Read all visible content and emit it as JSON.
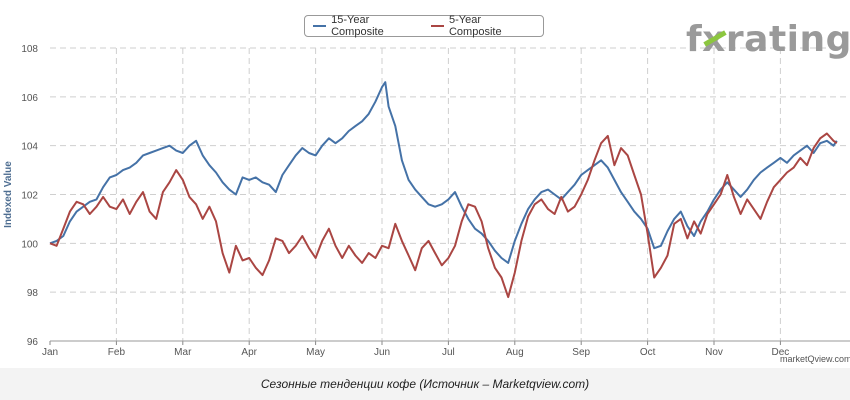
{
  "logo": {
    "pre": "f",
    "x": "x",
    "post": "rating"
  },
  "credit": "marketQview.com",
  "caption": "Сезонные тенденции кофе (Источник – Marketqview.com)",
  "chart_data": {
    "type": "line",
    "title": "",
    "xlabel": "",
    "ylabel": "Indexed Value",
    "ylim": [
      96,
      108
    ],
    "yticks": [
      96,
      98,
      100,
      102,
      104,
      106,
      108
    ],
    "months": [
      "Jan",
      "Feb",
      "Mar",
      "Apr",
      "May",
      "Jun",
      "Jul",
      "Aug",
      "Sep",
      "Oct",
      "Nov",
      "Dec"
    ],
    "grid": true,
    "legend_position": "top-center",
    "series": [
      {
        "name": "15-Year Composite",
        "color": "#4572a7",
        "points": [
          [
            0,
            100.0
          ],
          [
            0.1,
            100.1
          ],
          [
            0.2,
            100.3
          ],
          [
            0.3,
            100.9
          ],
          [
            0.4,
            101.3
          ],
          [
            0.5,
            101.5
          ],
          [
            0.6,
            101.7
          ],
          [
            0.7,
            101.8
          ],
          [
            0.8,
            102.3
          ],
          [
            0.9,
            102.7
          ],
          [
            1.0,
            102.8
          ],
          [
            1.1,
            103.0
          ],
          [
            1.2,
            103.1
          ],
          [
            1.3,
            103.3
          ],
          [
            1.4,
            103.6
          ],
          [
            1.5,
            103.7
          ],
          [
            1.6,
            103.8
          ],
          [
            1.7,
            103.9
          ],
          [
            1.8,
            104.0
          ],
          [
            1.9,
            103.8
          ],
          [
            2.0,
            103.7
          ],
          [
            2.1,
            104.0
          ],
          [
            2.2,
            104.2
          ],
          [
            2.3,
            103.6
          ],
          [
            2.4,
            103.2
          ],
          [
            2.5,
            102.9
          ],
          [
            2.6,
            102.5
          ],
          [
            2.7,
            102.2
          ],
          [
            2.8,
            102.0
          ],
          [
            2.9,
            102.7
          ],
          [
            3.0,
            102.6
          ],
          [
            3.1,
            102.7
          ],
          [
            3.2,
            102.5
          ],
          [
            3.3,
            102.4
          ],
          [
            3.4,
            102.1
          ],
          [
            3.5,
            102.8
          ],
          [
            3.6,
            103.2
          ],
          [
            3.7,
            103.6
          ],
          [
            3.8,
            103.9
          ],
          [
            3.9,
            103.7
          ],
          [
            4.0,
            103.6
          ],
          [
            4.1,
            104.0
          ],
          [
            4.2,
            104.3
          ],
          [
            4.3,
            104.1
          ],
          [
            4.4,
            104.3
          ],
          [
            4.5,
            104.6
          ],
          [
            4.6,
            104.8
          ],
          [
            4.7,
            105.0
          ],
          [
            4.8,
            105.3
          ],
          [
            4.9,
            105.8
          ],
          [
            5.0,
            106.4
          ],
          [
            5.05,
            106.6
          ],
          [
            5.1,
            105.6
          ],
          [
            5.2,
            104.8
          ],
          [
            5.3,
            103.4
          ],
          [
            5.4,
            102.6
          ],
          [
            5.5,
            102.2
          ],
          [
            5.6,
            101.9
          ],
          [
            5.7,
            101.6
          ],
          [
            5.8,
            101.5
          ],
          [
            5.9,
            101.6
          ],
          [
            6.0,
            101.8
          ],
          [
            6.1,
            102.1
          ],
          [
            6.2,
            101.5
          ],
          [
            6.3,
            101.0
          ],
          [
            6.4,
            100.6
          ],
          [
            6.5,
            100.4
          ],
          [
            6.6,
            100.1
          ],
          [
            6.7,
            99.7
          ],
          [
            6.8,
            99.4
          ],
          [
            6.9,
            99.2
          ],
          [
            7.0,
            100.1
          ],
          [
            7.1,
            100.8
          ],
          [
            7.2,
            101.4
          ],
          [
            7.3,
            101.8
          ],
          [
            7.4,
            102.1
          ],
          [
            7.5,
            102.2
          ],
          [
            7.6,
            102.0
          ],
          [
            7.7,
            101.8
          ],
          [
            7.8,
            102.1
          ],
          [
            7.9,
            102.4
          ],
          [
            8.0,
            102.8
          ],
          [
            8.1,
            103.0
          ],
          [
            8.2,
            103.2
          ],
          [
            8.3,
            103.4
          ],
          [
            8.4,
            103.1
          ],
          [
            8.5,
            102.6
          ],
          [
            8.6,
            102.1
          ],
          [
            8.7,
            101.7
          ],
          [
            8.8,
            101.3
          ],
          [
            8.9,
            101.0
          ],
          [
            9.0,
            100.6
          ],
          [
            9.1,
            99.8
          ],
          [
            9.2,
            99.9
          ],
          [
            9.3,
            100.5
          ],
          [
            9.4,
            101.0
          ],
          [
            9.5,
            101.3
          ],
          [
            9.6,
            100.7
          ],
          [
            9.7,
            100.3
          ],
          [
            9.8,
            100.9
          ],
          [
            9.9,
            101.3
          ],
          [
            10.0,
            101.8
          ],
          [
            10.1,
            102.2
          ],
          [
            10.2,
            102.5
          ],
          [
            10.3,
            102.2
          ],
          [
            10.4,
            101.9
          ],
          [
            10.5,
            102.2
          ],
          [
            10.6,
            102.6
          ],
          [
            10.7,
            102.9
          ],
          [
            10.8,
            103.1
          ],
          [
            10.9,
            103.3
          ],
          [
            11.0,
            103.5
          ],
          [
            11.1,
            103.3
          ],
          [
            11.2,
            103.6
          ],
          [
            11.3,
            103.8
          ],
          [
            11.4,
            104.0
          ],
          [
            11.5,
            103.7
          ],
          [
            11.6,
            104.1
          ],
          [
            11.7,
            104.2
          ],
          [
            11.8,
            104.0
          ],
          [
            11.85,
            104.2
          ]
        ]
      },
      {
        "name": "5-Year Composite",
        "color": "#aa4643",
        "points": [
          [
            0,
            100.0
          ],
          [
            0.1,
            99.9
          ],
          [
            0.2,
            100.6
          ],
          [
            0.3,
            101.3
          ],
          [
            0.4,
            101.7
          ],
          [
            0.5,
            101.6
          ],
          [
            0.6,
            101.2
          ],
          [
            0.7,
            101.5
          ],
          [
            0.8,
            101.9
          ],
          [
            0.9,
            101.5
          ],
          [
            1.0,
            101.4
          ],
          [
            1.1,
            101.8
          ],
          [
            1.2,
            101.2
          ],
          [
            1.3,
            101.7
          ],
          [
            1.4,
            102.1
          ],
          [
            1.5,
            101.3
          ],
          [
            1.6,
            101.0
          ],
          [
            1.7,
            102.1
          ],
          [
            1.8,
            102.5
          ],
          [
            1.9,
            103.0
          ],
          [
            2.0,
            102.6
          ],
          [
            2.1,
            101.9
          ],
          [
            2.2,
            101.6
          ],
          [
            2.3,
            101.0
          ],
          [
            2.4,
            101.5
          ],
          [
            2.5,
            100.9
          ],
          [
            2.6,
            99.6
          ],
          [
            2.7,
            98.8
          ],
          [
            2.8,
            99.9
          ],
          [
            2.9,
            99.3
          ],
          [
            3.0,
            99.4
          ],
          [
            3.1,
            99.0
          ],
          [
            3.2,
            98.7
          ],
          [
            3.3,
            99.3
          ],
          [
            3.4,
            100.2
          ],
          [
            3.5,
            100.1
          ],
          [
            3.6,
            99.6
          ],
          [
            3.7,
            99.9
          ],
          [
            3.8,
            100.3
          ],
          [
            3.9,
            99.8
          ],
          [
            4.0,
            99.4
          ],
          [
            4.1,
            100.1
          ],
          [
            4.2,
            100.6
          ],
          [
            4.3,
            99.9
          ],
          [
            4.4,
            99.4
          ],
          [
            4.5,
            99.9
          ],
          [
            4.6,
            99.5
          ],
          [
            4.7,
            99.2
          ],
          [
            4.8,
            99.6
          ],
          [
            4.9,
            99.4
          ],
          [
            5.0,
            99.9
          ],
          [
            5.1,
            99.8
          ],
          [
            5.2,
            100.8
          ],
          [
            5.3,
            100.1
          ],
          [
            5.4,
            99.5
          ],
          [
            5.5,
            98.9
          ],
          [
            5.6,
            99.8
          ],
          [
            5.7,
            100.1
          ],
          [
            5.8,
            99.6
          ],
          [
            5.9,
            99.1
          ],
          [
            6.0,
            99.4
          ],
          [
            6.1,
            99.9
          ],
          [
            6.2,
            100.9
          ],
          [
            6.3,
            101.6
          ],
          [
            6.4,
            101.5
          ],
          [
            6.5,
            100.9
          ],
          [
            6.6,
            99.8
          ],
          [
            6.7,
            99.0
          ],
          [
            6.8,
            98.6
          ],
          [
            6.9,
            97.8
          ],
          [
            7.0,
            98.8
          ],
          [
            7.1,
            100.1
          ],
          [
            7.2,
            101.1
          ],
          [
            7.3,
            101.6
          ],
          [
            7.4,
            101.8
          ],
          [
            7.5,
            101.4
          ],
          [
            7.6,
            101.2
          ],
          [
            7.7,
            101.9
          ],
          [
            7.8,
            101.3
          ],
          [
            7.9,
            101.5
          ],
          [
            8.0,
            102.0
          ],
          [
            8.1,
            102.6
          ],
          [
            8.2,
            103.4
          ],
          [
            8.3,
            104.1
          ],
          [
            8.4,
            104.4
          ],
          [
            8.5,
            103.2
          ],
          [
            8.6,
            103.9
          ],
          [
            8.7,
            103.6
          ],
          [
            8.8,
            102.8
          ],
          [
            8.9,
            102.0
          ],
          [
            9.0,
            100.4
          ],
          [
            9.1,
            98.6
          ],
          [
            9.2,
            99.0
          ],
          [
            9.3,
            99.5
          ],
          [
            9.4,
            100.8
          ],
          [
            9.5,
            101.0
          ],
          [
            9.6,
            100.2
          ],
          [
            9.7,
            100.9
          ],
          [
            9.8,
            100.4
          ],
          [
            9.9,
            101.2
          ],
          [
            10.0,
            101.6
          ],
          [
            10.1,
            102.0
          ],
          [
            10.2,
            102.8
          ],
          [
            10.3,
            101.9
          ],
          [
            10.4,
            101.2
          ],
          [
            10.5,
            101.8
          ],
          [
            10.6,
            101.4
          ],
          [
            10.7,
            101.0
          ],
          [
            10.8,
            101.7
          ],
          [
            10.9,
            102.3
          ],
          [
            11.0,
            102.6
          ],
          [
            11.1,
            102.9
          ],
          [
            11.2,
            103.1
          ],
          [
            11.3,
            103.5
          ],
          [
            11.4,
            103.2
          ],
          [
            11.5,
            103.9
          ],
          [
            11.6,
            104.3
          ],
          [
            11.7,
            104.5
          ],
          [
            11.8,
            104.2
          ],
          [
            11.85,
            104.1
          ]
        ]
      }
    ]
  }
}
